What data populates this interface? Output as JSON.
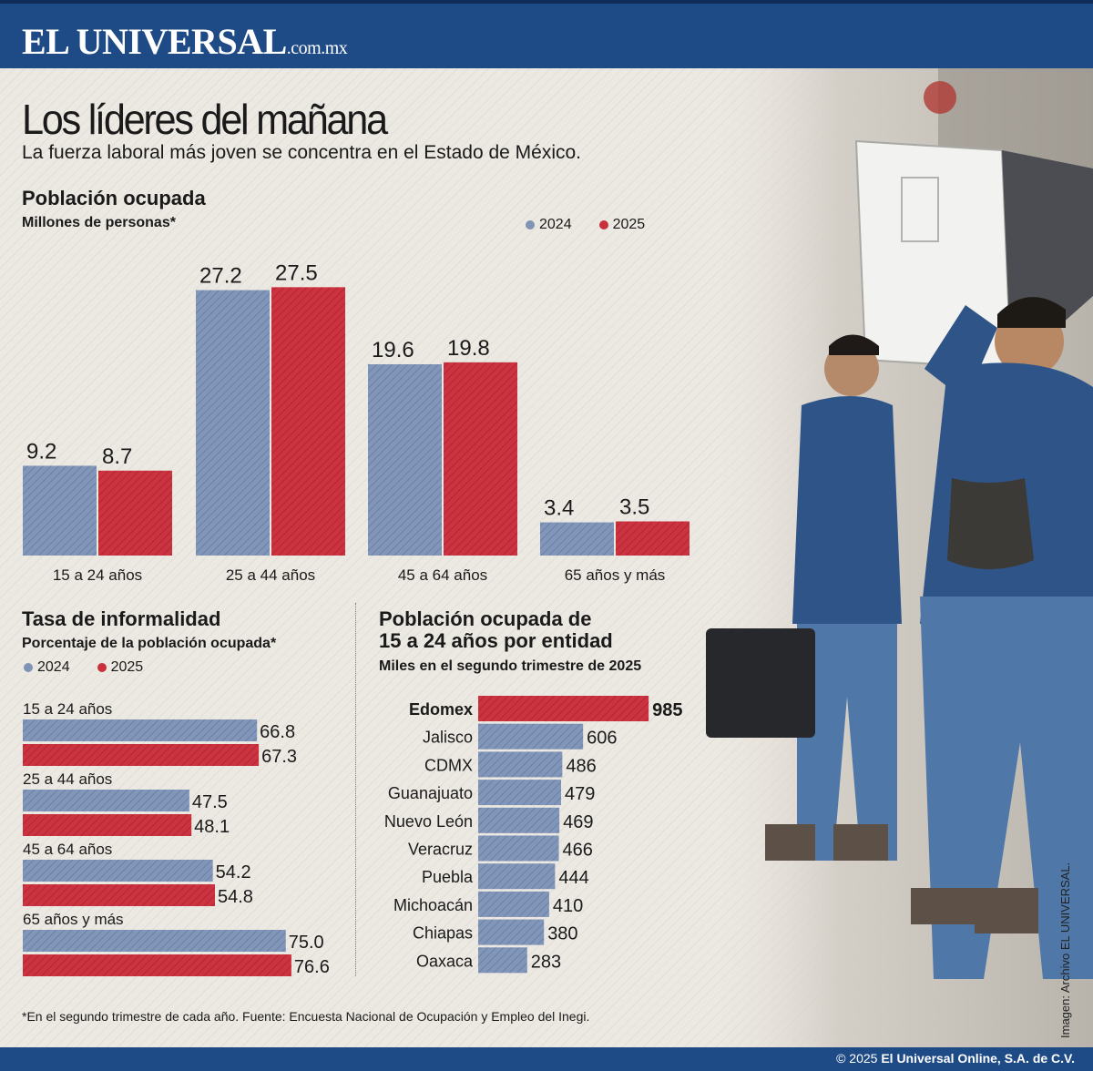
{
  "header": {
    "brand": "EL UNIVERSAL",
    "domain": ".com.mx"
  },
  "headline": "Los líderes del mañana",
  "subhead": "La fuerza laboral más joven se concentra en el Estado de México.",
  "colors": {
    "blue": "#7f93b5",
    "red": "#c8303c",
    "masthead": "#1e4b86"
  },
  "chart_data": [
    {
      "type": "bar",
      "title": "Población ocupada",
      "subtitle": "Millones de personas*",
      "categories": [
        "15 a 24 años",
        "25 a 44 años",
        "45 a 64 años",
        "65 años y más"
      ],
      "series": [
        {
          "name": "2024",
          "values": [
            9.2,
            27.2,
            19.6,
            3.4
          ]
        },
        {
          "name": "2025",
          "values": [
            8.7,
            27.5,
            19.8,
            3.5
          ]
        }
      ],
      "value_labels": [
        [
          "9.2",
          "27.2",
          "19.6",
          "3.4"
        ],
        [
          "8.7",
          "27.5",
          "19.8",
          "3.5"
        ]
      ],
      "ylim": [
        0,
        28
      ],
      "grid": false,
      "legend": "top-right"
    },
    {
      "type": "bar",
      "orientation": "horizontal",
      "title": "Tasa de informalidad",
      "subtitle": "Porcentaje de la población ocupada*",
      "categories": [
        "15 a 24 años",
        "25 a 44 años",
        "45 a 64 años",
        "65 años y más"
      ],
      "series": [
        {
          "name": "2024",
          "values": [
            66.8,
            47.5,
            54.2,
            75.0
          ]
        },
        {
          "name": "2025",
          "values": [
            67.3,
            48.1,
            54.8,
            76.6
          ]
        }
      ],
      "value_labels": [
        [
          "66.8",
          "47.5",
          "54.2",
          "75.0"
        ],
        [
          "67.3",
          "48.1",
          "54.8",
          "76.6"
        ]
      ],
      "xlim": [
        0,
        100
      ],
      "legend": "top-left"
    },
    {
      "type": "bar",
      "orientation": "horizontal",
      "title_lines": [
        "Población ocupada de",
        "15 a 24 años por entidad"
      ],
      "subtitle": "Miles en el segundo trimestre de 2025",
      "categories": [
        "Edomex",
        "Jalisco",
        "CDMX",
        "Guanajuato",
        "Nuevo León",
        "Veracruz",
        "Puebla",
        "Michoacán",
        "Chiapas",
        "Oaxaca"
      ],
      "values": [
        985,
        606,
        486,
        479,
        469,
        466,
        444,
        410,
        380,
        283
      ],
      "value_labels": [
        "985",
        "606",
        "486",
        "479",
        "469",
        "466",
        "444",
        "410",
        "380",
        "283"
      ],
      "highlight": "Edomex",
      "xlim": [
        0,
        1000
      ]
    }
  ],
  "footnote": "*En el segundo trimestre de cada año. Fuente: Encuesta Nacional de Ocupación y Empleo del Inegi.",
  "photo_credit": "Imagen: Archivo EL UNIVERSAL.",
  "footer": {
    "copyright_prefix": "© 2025 ",
    "copyright_owner": "El Universal Online, S.A. de C.V."
  }
}
